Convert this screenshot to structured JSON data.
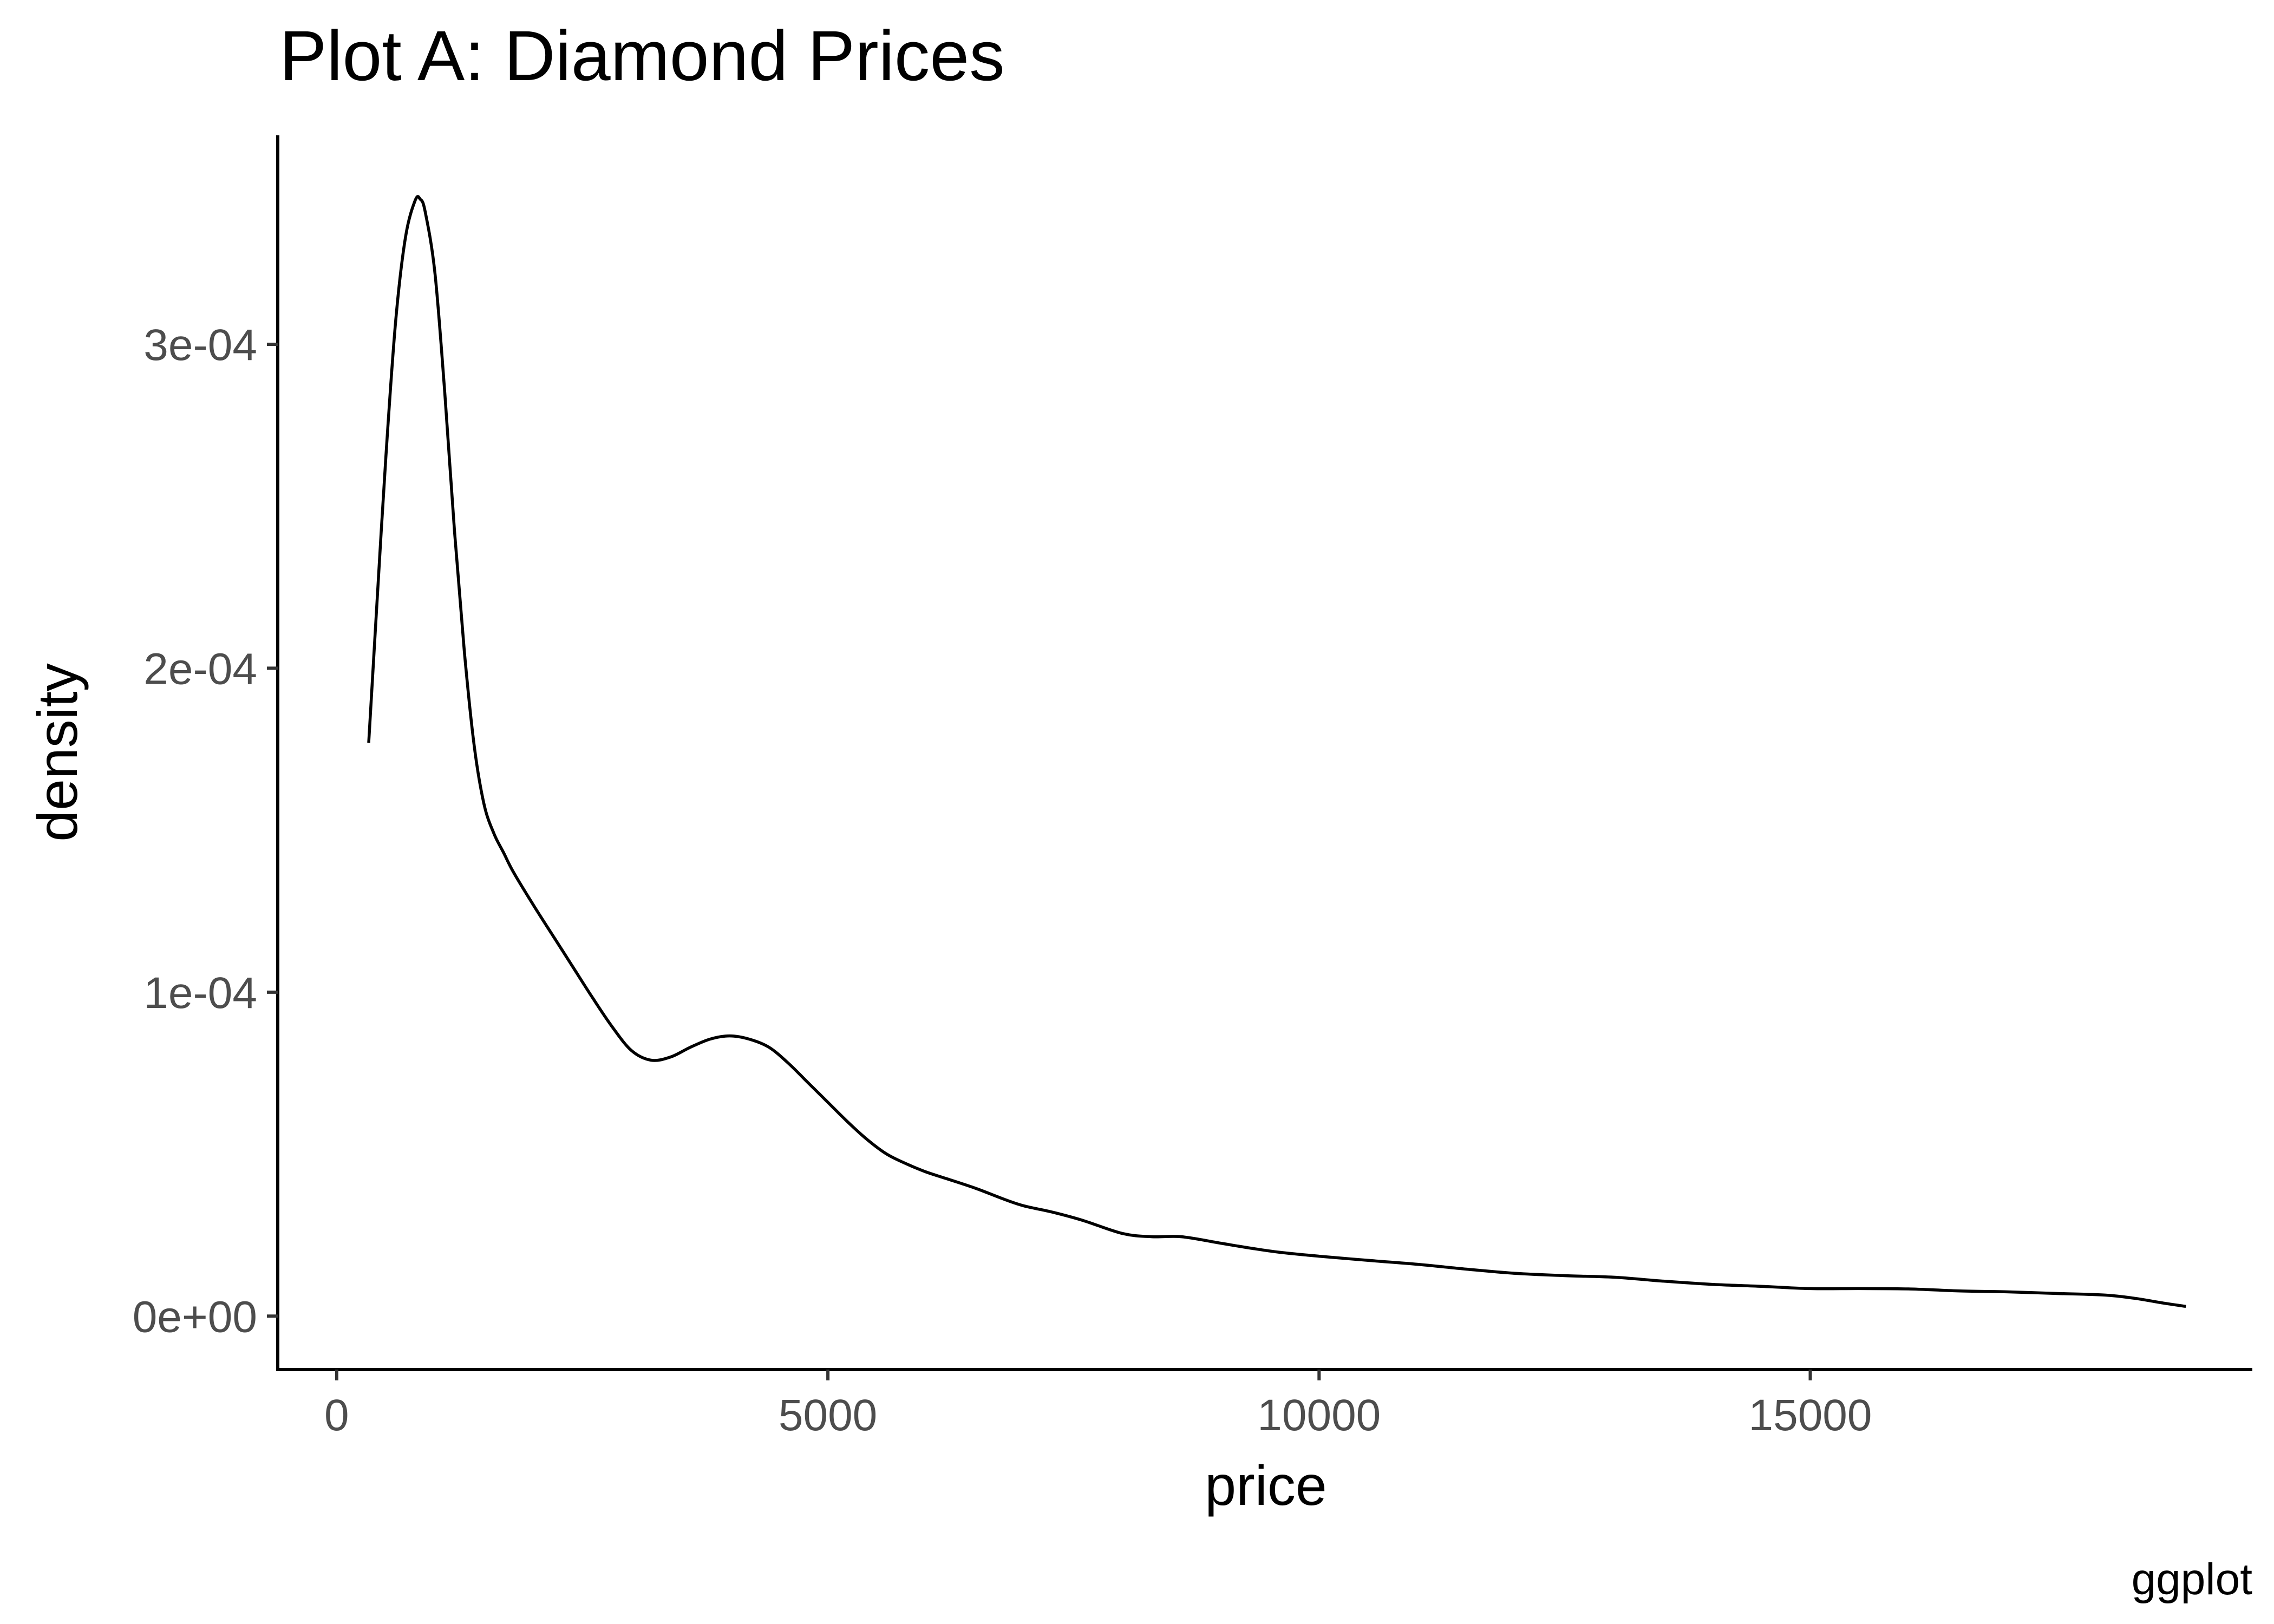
{
  "chart_data": {
    "type": "line",
    "title": "Plot A: Diamond Prices",
    "xlabel": "price",
    "ylabel": "density",
    "caption": "ggplot",
    "xlim": [
      -600,
      19500
    ],
    "ylim": [
      -1.65e-05,
      0.0003645
    ],
    "x_ticks": [
      0,
      5000,
      10000,
      15000
    ],
    "x_tick_labels": [
      "0",
      "5000",
      "10000",
      "15000"
    ],
    "y_ticks": [
      0,
      0.0001,
      0.0002,
      0.0003
    ],
    "y_tick_labels": [
      "0e+00",
      "1e-04",
      "2e-04",
      "3e-04"
    ],
    "grid": false,
    "legend": "none",
    "line_color": "#000000",
    "series": [
      {
        "x": [
          326,
          400,
          500,
          600,
          700,
          800,
          850,
          900,
          1000,
          1100,
          1200,
          1300,
          1400,
          1500,
          1600,
          1700,
          1800,
          2000,
          2200,
          2400,
          2600,
          2800,
          3000,
          3200,
          3400,
          3600,
          3800,
          4000,
          4200,
          4400,
          4600,
          4800,
          5000,
          5200,
          5400,
          5600,
          5800,
          6000,
          6200,
          6500,
          6800,
          7000,
          7300,
          7600,
          8000,
          8300,
          8600,
          9000,
          9300,
          9600,
          10000,
          10500,
          11000,
          11500,
          12000,
          12500,
          13000,
          13500,
          14000,
          14500,
          15000,
          15500,
          16000,
          16500,
          17000,
          17500,
          18000,
          18300,
          18600,
          18823
        ],
        "y": [
          0.000177,
          0.000215,
          0.000265,
          0.000307,
          0.000333,
          0.0003445,
          0.0003448,
          0.000341,
          0.000322,
          0.000285,
          0.000242,
          0.000205,
          0.000176,
          0.000158,
          0.000149,
          0.000143,
          0.000137,
          0.000127,
          0.0001175,
          0.000108,
          9.85e-05,
          8.95e-05,
          8.2e-05,
          7.9e-05,
          8e-05,
          8.3e-05,
          8.55e-05,
          8.65e-05,
          8.55e-05,
          8.3e-05,
          7.8e-05,
          7.2e-05,
          6.6e-05,
          6e-05,
          5.45e-05,
          5e-05,
          4.7e-05,
          4.45e-05,
          4.25e-05,
          3.95e-05,
          3.6e-05,
          3.4e-05,
          3.2e-05,
          2.95e-05,
          2.55e-05,
          2.45e-05,
          2.45e-05,
          2.25e-05,
          2.1e-05,
          1.97e-05,
          1.85e-05,
          1.72e-05,
          1.6e-05,
          1.45e-05,
          1.32e-05,
          1.25e-05,
          1.2e-05,
          1.08e-05,
          9.8e-06,
          9.2e-06,
          8.5e-06,
          8.5e-06,
          8.4e-06,
          7.8e-06,
          7.5e-06,
          7e-06,
          6.5e-06,
          5.5e-06,
          4e-06,
          3e-06
        ]
      }
    ]
  }
}
